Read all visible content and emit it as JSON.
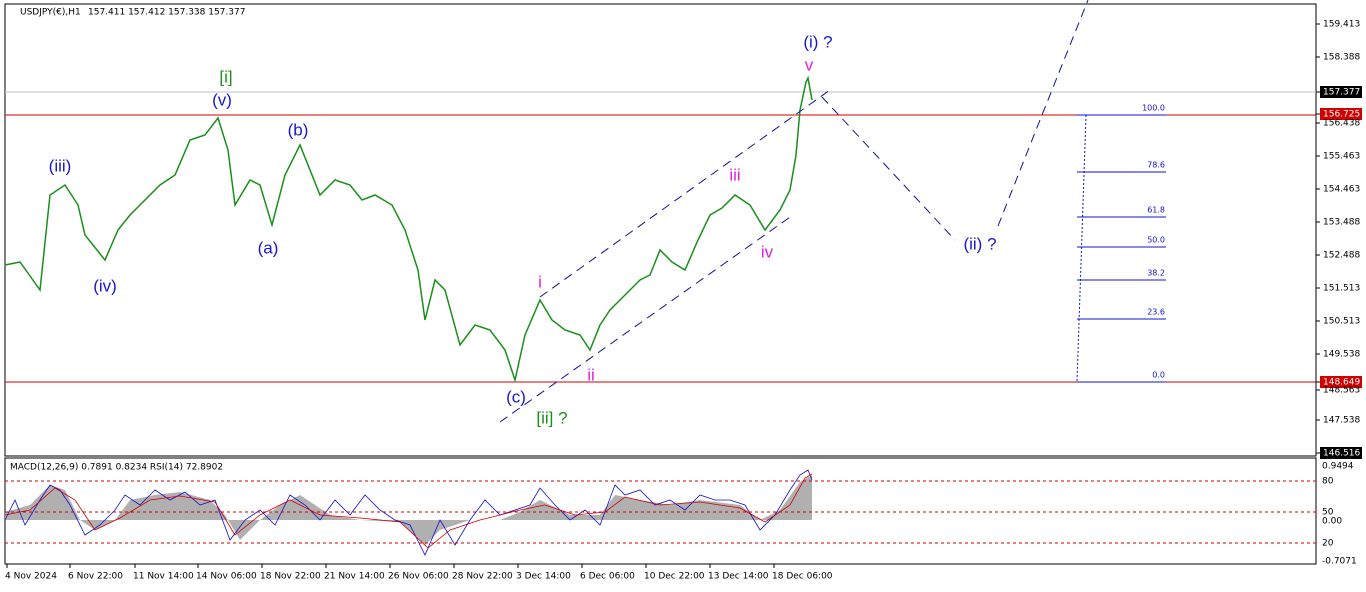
{
  "header": {
    "title": "USDJPY(€),H1",
    "quotes": "157.411 157.412 157.338 157.377"
  },
  "price_axis": [
    "159.413",
    "158.388",
    "157.377",
    "156.725",
    "156.438",
    "155.463",
    "154.463",
    "153.488",
    "152.488",
    "151.513",
    "150.513",
    "149.538",
    "148.649",
    "148.563",
    "147.538",
    "146.516"
  ],
  "time_axis": [
    "4 Nov 2024",
    "6 Nov 22:00",
    "11 Nov 14:00",
    "14 Nov 06:00",
    "18 Nov 22:00",
    "21 Nov 14:00",
    "26 Nov 06:00",
    "28 Nov 22:00",
    "3 Dec 14:00",
    "6 Dec 06:00",
    "10 Dec 22:00",
    "13 Dec 14:00",
    "18 Dec 06:00"
  ],
  "wave_labels": [
    "[i]",
    "(v)",
    "(iii)",
    "(iv)",
    "(b)",
    "(a)",
    "(c)",
    "[ii] ?",
    "i",
    "ii",
    "iii",
    "iv",
    "v",
    "(i) ?",
    "(ii) ?"
  ],
  "fib_levels": [
    "100.0",
    "78.6",
    "61.8",
    "50.0",
    "38.2",
    "23.6",
    "0.0"
  ],
  "indicator": {
    "title": "MACD(12,26,9) 0.7891 0.8234  RSI(14) 72.8902",
    "axis": [
      "0.9494",
      "80",
      "50",
      "0.00",
      "20",
      "-0.7071"
    ]
  }
}
